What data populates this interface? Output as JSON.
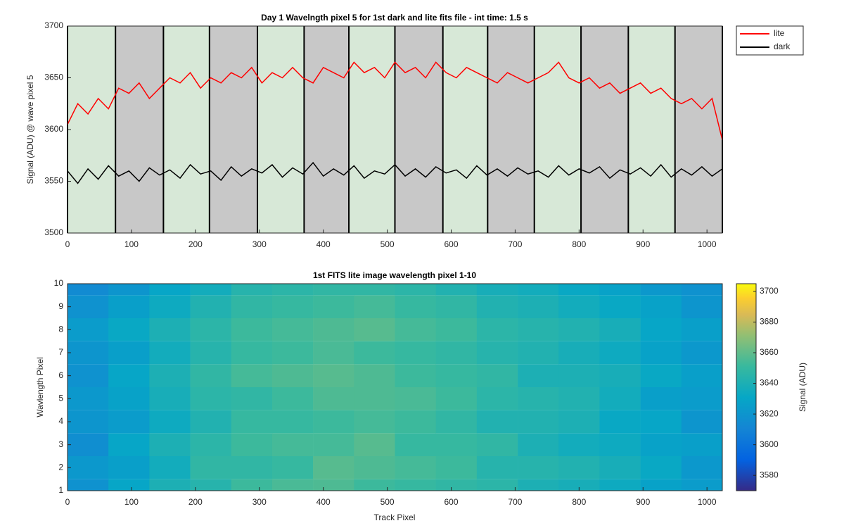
{
  "chart_data": [
    {
      "type": "line",
      "title": "Day 1 Wavelngth pixel 5 for 1st dark and lite fits file - int time: 1.5 s",
      "ylabel": "Signal (ADU) @ wave pixel 5",
      "x": [
        0,
        16,
        32,
        48,
        64,
        80,
        96,
        112,
        128,
        144,
        160,
        176,
        192,
        208,
        224,
        240,
        256,
        272,
        288,
        304,
        320,
        336,
        352,
        368,
        384,
        400,
        416,
        432,
        448,
        464,
        480,
        496,
        512,
        528,
        544,
        560,
        576,
        592,
        608,
        624,
        640,
        656,
        672,
        688,
        704,
        720,
        736,
        752,
        768,
        784,
        800,
        816,
        832,
        848,
        864,
        880,
        896,
        912,
        928,
        944,
        960,
        976,
        992,
        1008,
        1024
      ],
      "series": [
        {
          "name": "lite",
          "color": "#ff0000",
          "values": [
            3605,
            3625,
            3615,
            3630,
            3620,
            3640,
            3635,
            3645,
            3630,
            3640,
            3650,
            3645,
            3655,
            3640,
            3650,
            3645,
            3655,
            3650,
            3660,
            3645,
            3655,
            3650,
            3660,
            3650,
            3645,
            3660,
            3655,
            3650,
            3665,
            3655,
            3660,
            3650,
            3665,
            3655,
            3660,
            3650,
            3665,
            3655,
            3650,
            3660,
            3655,
            3650,
            3645,
            3655,
            3650,
            3645,
            3650,
            3655,
            3665,
            3650,
            3645,
            3650,
            3640,
            3645,
            3635,
            3640,
            3645,
            3635,
            3640,
            3630,
            3625,
            3630,
            3620,
            3630,
            3590
          ]
        },
        {
          "name": "dark",
          "color": "#000000",
          "values": [
            3560,
            3548,
            3562,
            3552,
            3565,
            3555,
            3560,
            3550,
            3563,
            3556,
            3561,
            3553,
            3566,
            3557,
            3560,
            3551,
            3564,
            3555,
            3562,
            3558,
            3566,
            3554,
            3563,
            3557,
            3568,
            3555,
            3562,
            3556,
            3565,
            3553,
            3560,
            3557,
            3566,
            3555,
            3562,
            3554,
            3564,
            3558,
            3561,
            3553,
            3565,
            3556,
            3562,
            3555,
            3563,
            3557,
            3560,
            3554,
            3565,
            3556,
            3562,
            3558,
            3564,
            3553,
            3561,
            3557,
            3563,
            3555,
            3566,
            3554,
            3562,
            3556,
            3564,
            3555,
            3562
          ]
        }
      ],
      "xlim": [
        0,
        1024
      ],
      "xticks": [
        0,
        100,
        200,
        300,
        400,
        500,
        600,
        700,
        800,
        900,
        1000
      ],
      "ylim": [
        3500,
        3700
      ],
      "yticks": [
        3500,
        3550,
        3600,
        3650,
        3700
      ],
      "bands": {
        "edges": [
          0,
          75,
          150,
          222,
          297,
          370,
          440,
          512,
          587,
          657,
          730,
          803,
          877,
          950,
          1024
        ],
        "colors": [
          "#d7e8d7",
          "#c8c8c8"
        ]
      },
      "legend": "outside-right-top"
    },
    {
      "type": "heatmap",
      "title": "1st FITS lite image wavelength pixel 1-10",
      "xlabel": "Track Pixel",
      "ylabel": "Wavlength Pixel",
      "colorbar_label": "Signal (ADU)",
      "x_edges": [
        0,
        64,
        128,
        192,
        256,
        320,
        384,
        448,
        512,
        576,
        640,
        704,
        768,
        832,
        896,
        960,
        1024
      ],
      "rows": [
        1,
        2,
        3,
        4,
        5,
        6,
        7,
        8,
        9,
        10
      ],
      "z": [
        [
          3618,
          3630,
          3640,
          3644,
          3652,
          3655,
          3656,
          3652,
          3650,
          3648,
          3646,
          3640,
          3638,
          3634,
          3628,
          3624
        ],
        [
          3622,
          3626,
          3636,
          3648,
          3648,
          3650,
          3658,
          3656,
          3654,
          3652,
          3644,
          3644,
          3642,
          3638,
          3632,
          3622
        ],
        [
          3616,
          3630,
          3640,
          3646,
          3652,
          3654,
          3654,
          3658,
          3650,
          3650,
          3648,
          3640,
          3636,
          3634,
          3628,
          3626
        ],
        [
          3620,
          3624,
          3634,
          3642,
          3650,
          3650,
          3652,
          3654,
          3652,
          3648,
          3642,
          3642,
          3640,
          3632,
          3630,
          3620
        ],
        [
          3622,
          3628,
          3638,
          3646,
          3648,
          3652,
          3656,
          3656,
          3655,
          3652,
          3646,
          3644,
          3642,
          3636,
          3626,
          3624
        ],
        [
          3618,
          3630,
          3640,
          3648,
          3654,
          3656,
          3658,
          3656,
          3652,
          3650,
          3648,
          3640,
          3640,
          3638,
          3632,
          3626
        ],
        [
          3620,
          3626,
          3636,
          3644,
          3650,
          3652,
          3655,
          3652,
          3650,
          3648,
          3644,
          3642,
          3638,
          3634,
          3628,
          3622
        ],
        [
          3624,
          3632,
          3640,
          3646,
          3652,
          3654,
          3656,
          3658,
          3654,
          3652,
          3646,
          3644,
          3642,
          3638,
          3630,
          3626
        ],
        [
          3618,
          3626,
          3634,
          3642,
          3648,
          3650,
          3652,
          3654,
          3650,
          3648,
          3642,
          3640,
          3636,
          3632,
          3628,
          3620
        ],
        [
          3614,
          3620,
          3630,
          3636,
          3644,
          3646,
          3648,
          3648,
          3646,
          3642,
          3638,
          3636,
          3632,
          3628,
          3622,
          3618
        ]
      ],
      "xlim": [
        0,
        1024
      ],
      "xticks": [
        0,
        100,
        200,
        300,
        400,
        500,
        600,
        700,
        800,
        900,
        1000
      ],
      "ylim": [
        1,
        10
      ],
      "yticks": [
        1,
        2,
        3,
        4,
        5,
        6,
        7,
        8,
        9,
        10
      ],
      "colormap": "parula",
      "clim": [
        3570,
        3705
      ],
      "cticks": [
        3580,
        3600,
        3620,
        3640,
        3660,
        3680,
        3700
      ]
    }
  ]
}
